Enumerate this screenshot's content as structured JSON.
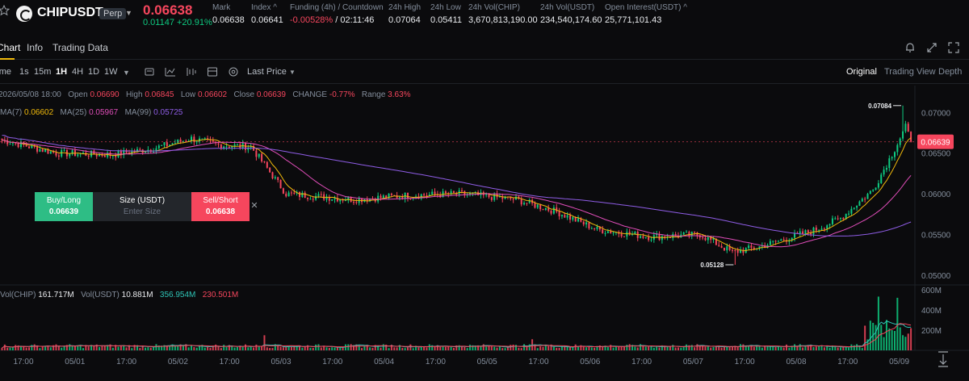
{
  "header": {
    "symbol": "CHIPUSDT",
    "contract_type": "Perp",
    "last_price": "0.06638",
    "change": "0.01147 +20.91%",
    "stats": [
      {
        "label": "Mark",
        "value": "0.06638"
      },
      {
        "label": "Index ^",
        "value": "0.06641"
      },
      {
        "label": "Funding (4h) / Countdown",
        "value": "-0.00528%",
        "value2": " / 02:11:46"
      },
      {
        "label": "24h High",
        "value": "0.07064"
      },
      {
        "label": "24h Low",
        "value": "0.05411"
      },
      {
        "label": "24h Vol(CHIP)",
        "value": "3,670,813,190.00"
      },
      {
        "label": "24h Vol(USDT)",
        "value": "234,540,174.60"
      },
      {
        "label": "Open Interest(USDT) ^",
        "value": "25,771,101.43"
      }
    ]
  },
  "tabs": [
    "Chart",
    "Info",
    "Trading Data"
  ],
  "toolbar": {
    "time_label": "Time",
    "intervals": [
      "1s",
      "15m",
      "1H",
      "4H",
      "1D",
      "1W"
    ],
    "active_interval": "1H",
    "price_type": "Last Price",
    "views": [
      "Original",
      "Trading View",
      "Depth"
    ],
    "active_view": "Original",
    "icons": [
      "chevron-down-icon",
      "candle-type-icon",
      "indicator-icon",
      "drawing-tools-icon",
      "layout-icon",
      "settings-icon",
      "more-icon"
    ]
  },
  "ohlc_legend": {
    "datetime": "2026/05/08 18:00",
    "open_label": "Open",
    "open": "0.06690",
    "high_label": "High",
    "high": "0.06845",
    "low_label": "Low",
    "low": "0.06602",
    "close_label": "Close",
    "close": "0.06639",
    "change_label": "CHANGE",
    "change": "-0.77%",
    "range_label": "Range",
    "range": "3.63%"
  },
  "ma_legend": {
    "ma7_label": "MA(7)",
    "ma7": "0.06602",
    "ma25_label": "MA(25)",
    "ma25": "0.05967",
    "ma99_label": "MA(99)",
    "ma99": "0.05725"
  },
  "vol_legend": {
    "vol_chip_label": "Vol(CHIP)",
    "vol_chip": "161.717M",
    "vol_usdt_label": "Vol(USDT)",
    "vol_usdt": "10.881M",
    "vol_ma1": "356.954M",
    "vol_ma2": "230.501M"
  },
  "order_widget": {
    "buy_label": "Buy/Long",
    "buy_price": "0.06639",
    "size_label": "Size (USDT)",
    "size_placeholder": "Enter Size",
    "sell_label": "Sell/Short",
    "sell_price": "0.06638"
  },
  "colors": {
    "up": "#0ecb81",
    "down": "#f6465d",
    "ma7": "#f0b90b",
    "ma25": "#e04db9",
    "ma99": "#8f5de6",
    "vol_ma1": "#2ec4b6",
    "vol_ma2": "#f6465d"
  },
  "chart_data": {
    "type": "candlestick",
    "price_axis_ticks": [
      "0.07000",
      "0.06500",
      "0.06000",
      "0.05500",
      "0.05000"
    ],
    "price_range": [
      0.0488,
      0.0733
    ],
    "volume_axis_ticks": [
      "600M",
      "400M",
      "200M"
    ],
    "volume_range": [
      0,
      650
    ],
    "x_tick_labels": [
      "17:00",
      "05/01",
      "17:00",
      "05/02",
      "17:00",
      "05/03",
      "17:00",
      "05/04",
      "17:00",
      "05/05",
      "17:00",
      "05/06",
      "17:00",
      "05/07",
      "17:00",
      "05/08",
      "17:00",
      "05/09"
    ],
    "current_price_label": "0.06639",
    "current_price": 0.06639,
    "high_marker": {
      "label": "0.07084",
      "value": 0.07084
    },
    "low_marker": {
      "label": "0.05128",
      "value": 0.05128
    },
    "ma_series": [
      "MA(7)",
      "MA(25)",
      "MA(99)"
    ]
  }
}
